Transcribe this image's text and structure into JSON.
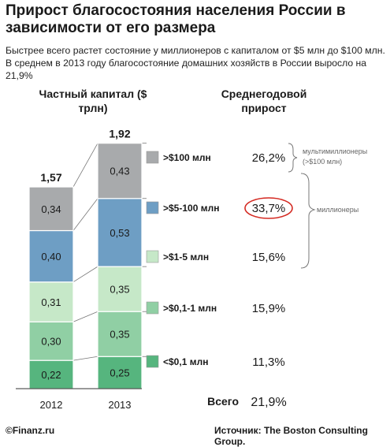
{
  "title": "Прирост благосостояния населения России в зависимости от его размера",
  "subtitle": "Быстрее всего растет состояние у миллионеров с капиталом от $5 млн до $100 млн. В среднем в 2013 году благосостояние домашних хозяйств в России выросло на 21,9%",
  "headers": {
    "capital": "Частный капитал ($ трлн)",
    "growth": "Среднегодовой прирост"
  },
  "colors": {
    "gt100": "#a8aaac",
    "5to100": "#6e9ec4",
    "1to5": "#c6e8c8",
    "01to1": "#90cfa4",
    "lt01": "#56b57e",
    "highlight_circle": "#d42a22",
    "bracket": "#777777"
  },
  "chart_data": {
    "type": "bar",
    "stacked": true,
    "categories": [
      "2012",
      "2013"
    ],
    "totals": [
      "1,57",
      "1,92"
    ],
    "series": [
      {
        "name": "<$0,1 млн",
        "values": [
          0.22,
          0.25
        ],
        "labels": [
          "0,22",
          "0,25"
        ],
        "growth": "11,3%"
      },
      {
        "name": ">$0,1-1 млн",
        "values": [
          0.3,
          0.35
        ],
        "labels": [
          "0,30",
          "0,35"
        ],
        "growth": "15,9%"
      },
      {
        "name": ">$1-5 млн",
        "values": [
          0.31,
          0.35
        ],
        "labels": [
          "0,31",
          "0,35"
        ],
        "growth": "15,6%"
      },
      {
        "name": ">$5-100 млн",
        "values": [
          0.4,
          0.53
        ],
        "labels": [
          "0,40",
          "0,53"
        ],
        "growth": "33,7%"
      },
      {
        "name": ">$100 млн",
        "values": [
          0.34,
          0.43
        ],
        "labels": [
          "0,34",
          "0,43"
        ],
        "growth": "26,2%"
      }
    ],
    "total_label": "Всего",
    "total_growth": "21,9%",
    "annotations": {
      "multimillionaires": "мультимиллионеры",
      "multimillionaires_sub": "(>$100 млн)",
      "millionaires": "миллионеры"
    }
  },
  "footer": {
    "left": "©Finanz.ru",
    "source": "Источник:  The Boston Consulting Group."
  }
}
